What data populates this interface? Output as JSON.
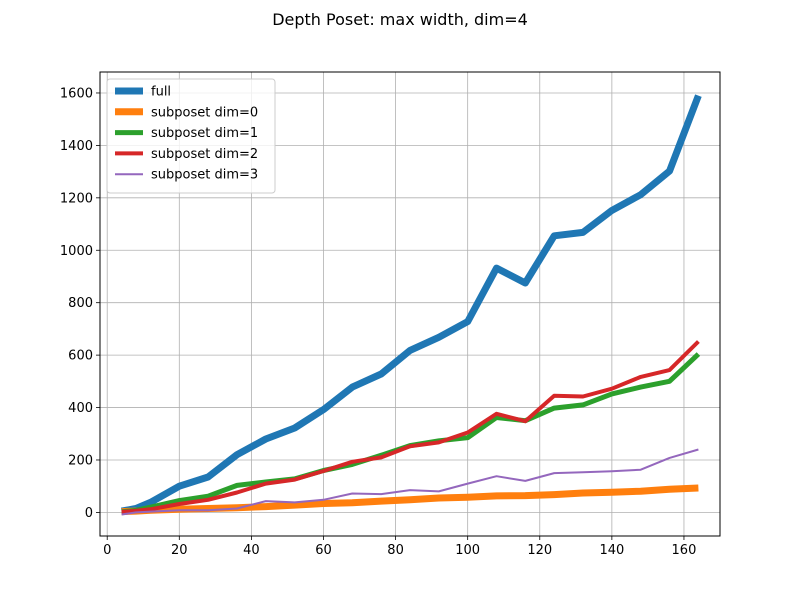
{
  "chart_data": {
    "type": "line",
    "title": "Depth Poset: max width, dim=4",
    "xlabel": "",
    "ylabel": "",
    "xlim": [
      -2,
      170
    ],
    "ylim": [
      -90,
      1680
    ],
    "xticks": [
      0,
      20,
      40,
      60,
      80,
      100,
      120,
      140,
      160
    ],
    "yticks": [
      0,
      200,
      400,
      600,
      800,
      1000,
      1200,
      1400,
      1600
    ],
    "grid": true,
    "legend_position": "top-left",
    "x": [
      4,
      8,
      12,
      20,
      28,
      36,
      44,
      52,
      60,
      68,
      76,
      84,
      92,
      100,
      108,
      116,
      124,
      132,
      140,
      148,
      156,
      164
    ],
    "series": [
      {
        "name": "full",
        "color": "#1f77b4",
        "linewidth": 7,
        "values": [
          5,
          15,
          38,
          100,
          135,
          220,
          280,
          322,
          392,
          478,
          528,
          618,
          668,
          728,
          932,
          875,
          1055,
          1068,
          1152,
          1212,
          1302,
          1590
        ]
      },
      {
        "name": "subposet dim=0",
        "color": "#ff7f0e",
        "linewidth": 7,
        "values": [
          3,
          5,
          8,
          12,
          15,
          18,
          22,
          28,
          34,
          37,
          43,
          48,
          55,
          58,
          63,
          64,
          68,
          74,
          77,
          81,
          88,
          93
        ]
      },
      {
        "name": "subposet dim=1",
        "color": "#2ca02c",
        "linewidth": 5,
        "values": [
          2,
          8,
          20,
          45,
          62,
          103,
          116,
          128,
          160,
          183,
          218,
          255,
          273,
          285,
          362,
          350,
          398,
          410,
          452,
          478,
          500,
          604
        ]
      },
      {
        "name": "subposet dim=2",
        "color": "#d62728",
        "linewidth": 4,
        "values": [
          2,
          6,
          12,
          32,
          48,
          76,
          110,
          125,
          158,
          193,
          210,
          252,
          267,
          305,
          376,
          348,
          445,
          442,
          472,
          517,
          543,
          652
        ]
      },
      {
        "name": "subposet dim=3",
        "color": "#9467bd",
        "linewidth": 2,
        "values": [
          -8,
          0,
          3,
          8,
          8,
          15,
          43,
          38,
          48,
          72,
          70,
          85,
          80,
          110,
          138,
          120,
          150,
          153,
          157,
          163,
          208,
          240
        ]
      }
    ]
  }
}
